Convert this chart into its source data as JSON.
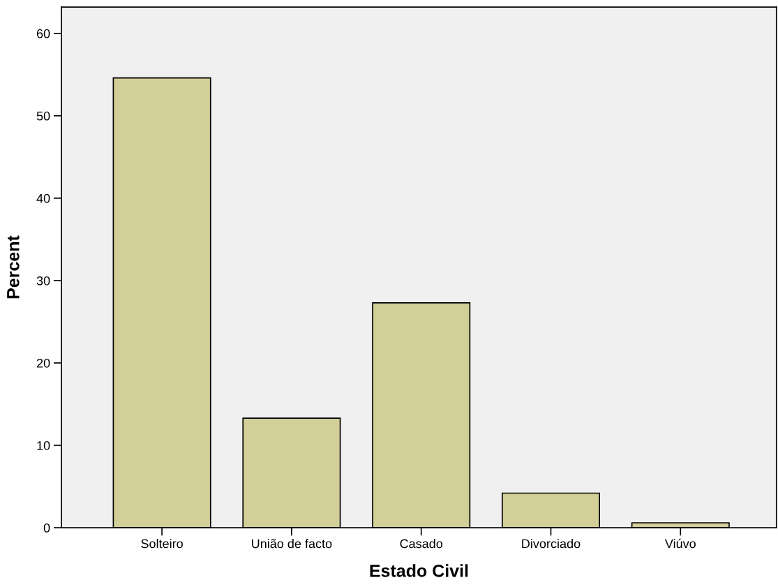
{
  "chart_data": {
    "type": "bar",
    "xlabel": "Estado Civil",
    "ylabel": "Percent",
    "categories": [
      "Solteiro",
      "União de facto",
      "Casado",
      "Divorciado",
      "Viúvo"
    ],
    "values": [
      54.6,
      13.3,
      27.3,
      4.2,
      0.6
    ],
    "color": "#d3cf99",
    "ylim": [
      0,
      63.2
    ],
    "yticks": [
      0,
      10,
      20,
      30,
      40,
      50,
      60
    ],
    "grid": false,
    "legend": false
  }
}
